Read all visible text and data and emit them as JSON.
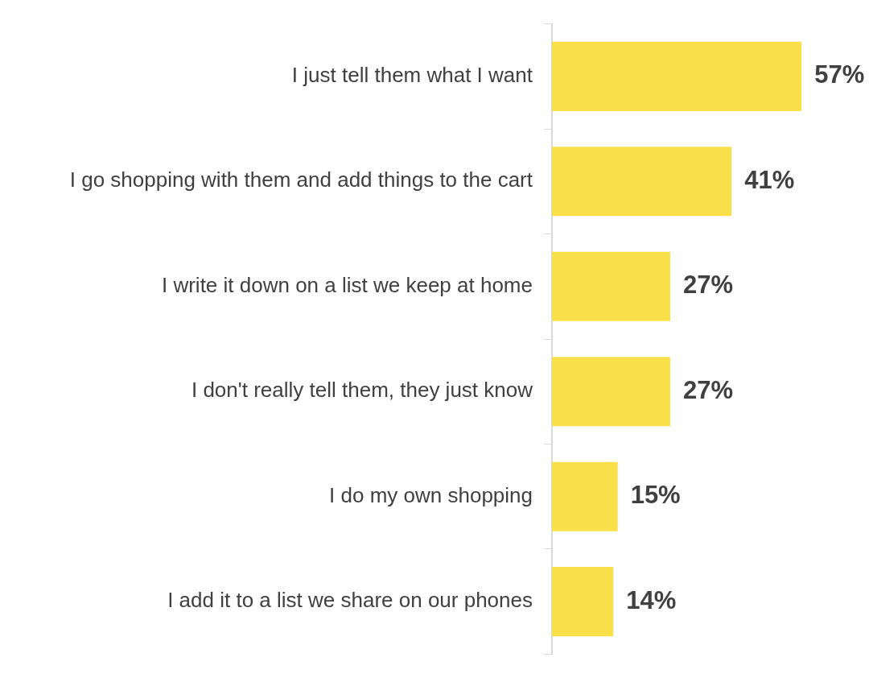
{
  "chart_data": {
    "type": "bar",
    "orientation": "horizontal",
    "categories": [
      "I just tell them what I want",
      "I go shopping with them and add things to the cart",
      "I write it down on a list we keep at home",
      "I don't really tell them, they just know",
      "I do my own shopping",
      "I add it to a list we share on our phones"
    ],
    "values": [
      57,
      41,
      27,
      27,
      15,
      14
    ],
    "color": "#f9e04b",
    "value_labels": [
      "57%",
      "41%",
      "27%",
      "27%",
      "15%",
      "14%"
    ],
    "legend": false,
    "tick_labels": "y"
  }
}
